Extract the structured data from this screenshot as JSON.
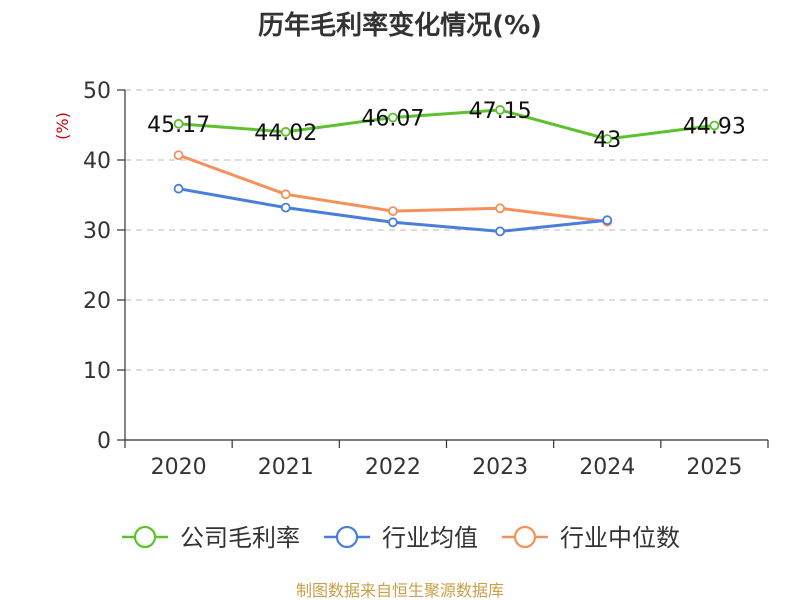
{
  "chart_data": {
    "type": "line",
    "title": "历年毛利率变化情况(%)",
    "ylabel": "(%)",
    "xlabel": "",
    "categories": [
      "2020",
      "2021",
      "2022",
      "2023",
      "2024",
      "2025"
    ],
    "ylim": [
      0,
      50
    ],
    "yticks": [
      "0",
      "10",
      "20",
      "30",
      "40",
      "50"
    ],
    "grid": "horizontal-dashed",
    "legend_position": "bottom",
    "series": [
      {
        "name": "公司毛利率",
        "color": "#5cc12c",
        "values": [
          45.17,
          44.02,
          46.07,
          47.15,
          43,
          44.93
        ],
        "labels": [
          "45.17",
          "44.02",
          "46.07",
          "47.15",
          "43",
          "44.93"
        ]
      },
      {
        "name": "行业均值",
        "color": "#4a7fd9",
        "values": [
          35.9,
          33.2,
          31.1,
          29.8,
          31.4,
          null
        ]
      },
      {
        "name": "行业中位数",
        "color": "#f5905a",
        "values": [
          40.7,
          35.1,
          32.7,
          33.1,
          31.2,
          null
        ]
      }
    ]
  },
  "source": "制图数据来自恒生聚源数据库"
}
